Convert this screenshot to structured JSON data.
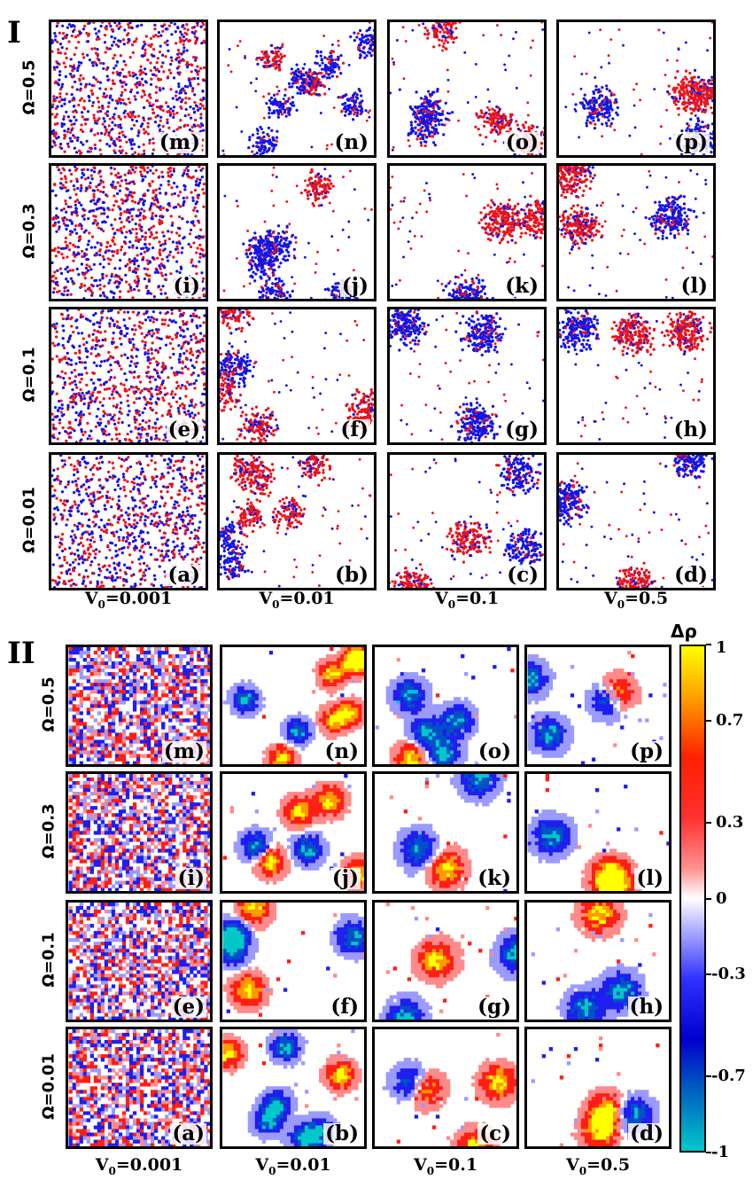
{
  "sections": [
    {
      "id": "I",
      "label": "I",
      "rows": [
        {
          "omega": "Ω=0.5",
          "panels": [
            "(m)",
            "(n)",
            "(o)",
            "(p)"
          ]
        },
        {
          "omega": "Ω=0.3",
          "panels": [
            "(i)",
            "(j)",
            "(k)",
            "(l)"
          ]
        },
        {
          "omega": "Ω=0.1",
          "panels": [
            "(e)",
            "(f)",
            "(g)",
            "(h)"
          ]
        },
        {
          "omega": "Ω=0.01",
          "panels": [
            "(a)",
            "(b)",
            "(c)",
            "(d)"
          ]
        }
      ],
      "columns": [
        {
          "prefix": "V",
          "sub": "0",
          "value": "=0.001"
        },
        {
          "prefix": "V",
          "sub": "0",
          "value": "=0.01"
        },
        {
          "prefix": "V",
          "sub": "0",
          "value": "=0.1"
        },
        {
          "prefix": "V",
          "sub": "0",
          "value": "=0.5"
        }
      ]
    },
    {
      "id": "II",
      "label": "II",
      "rows": [
        {
          "omega": "Ω=0.5",
          "panels": [
            "(m)",
            "(n)",
            "(o)",
            "(p)"
          ]
        },
        {
          "omega": "Ω=0.3",
          "panels": [
            "(i)",
            "(j)",
            "(k)",
            "(l)"
          ]
        },
        {
          "omega": "Ω=0.1",
          "panels": [
            "(e)",
            "(f)",
            "(g)",
            "(h)"
          ]
        },
        {
          "omega": "Ω=0.01",
          "panels": [
            "(a)",
            "(b)",
            "(c)",
            "(d)"
          ]
        }
      ],
      "columns": [
        {
          "prefix": "V",
          "sub": "0",
          "value": "=0.001"
        },
        {
          "prefix": "V",
          "sub": "0",
          "value": "=0.01"
        },
        {
          "prefix": "V",
          "sub": "0",
          "value": "=0.1"
        },
        {
          "prefix": "V",
          "sub": "0",
          "value": "=0.5"
        }
      ]
    }
  ],
  "colorbar": {
    "title": "Δρ",
    "ticks": [
      {
        "label": "1",
        "value": 1
      },
      {
        "label": "0.7",
        "value": 0.7
      },
      {
        "label": "0.3",
        "value": 0.3
      },
      {
        "label": "0",
        "value": 0
      },
      {
        "label": "-0.3",
        "value": -0.3
      },
      {
        "label": "-0.7",
        "value": -0.7
      },
      {
        "label": "-1",
        "value": -1
      }
    ],
    "range": [
      -1,
      1
    ]
  },
  "colors": {
    "red_particle": "#e8141e",
    "blue_particle": "#1414e6",
    "density_high": "#ffff00",
    "density_low": "#00c8c8"
  }
}
